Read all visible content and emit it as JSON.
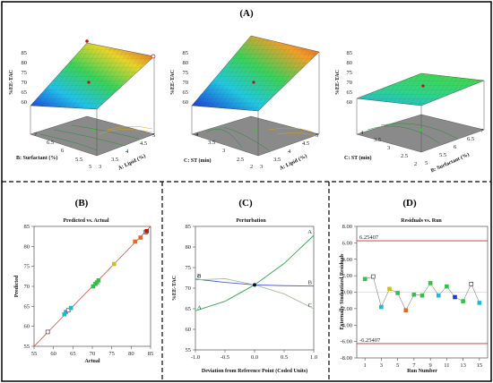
{
  "figure": {
    "panel_A_label": "(A)",
    "panel_B_label": "(B)",
    "panel_C_label": "(C)",
    "panel_D_label": "(D)"
  },
  "chart_data": [
    {
      "type": "surface3d",
      "panel": "A-1",
      "zlabel": "%EE-TAC",
      "xlabel": "A: Lipid (%)",
      "ylabel": "B: Surfactant (%)",
      "z_ticks": [
        "60",
        "65",
        "70",
        "75",
        "80",
        "85"
      ],
      "x_ticks": [
        "3",
        "3.5",
        "4",
        "4.5",
        "5"
      ],
      "y_ticks": [
        "5",
        "5.5",
        "6",
        "6.5",
        "7"
      ],
      "z_range": [
        60,
        85
      ]
    },
    {
      "type": "surface3d",
      "panel": "A-2",
      "zlabel": "%EE-TAC",
      "xlabel": "A: Lipid (%)",
      "ylabel": "C: ST (min)",
      "z_ticks": [
        "60",
        "65",
        "70",
        "75",
        "80",
        "85"
      ],
      "x_ticks": [
        "3",
        "3.5",
        "4",
        "4.5",
        "5"
      ],
      "y_ticks": [
        "2",
        "2.5",
        "3",
        "3.5",
        "4"
      ],
      "z_range": [
        60,
        85
      ]
    },
    {
      "type": "surface3d",
      "panel": "A-3",
      "zlabel": "%EE-TAC",
      "xlabel": "B: Surfactant (%)",
      "ylabel": "C: ST (min)",
      "z_ticks": [
        "60",
        "65",
        "70",
        "75",
        "80",
        "85"
      ],
      "x_ticks": [
        "5",
        "5.5",
        "6",
        "6.5",
        "7"
      ],
      "y_ticks": [
        "2",
        "2.5",
        "3",
        "3.5",
        "4"
      ],
      "z_range": [
        60,
        85
      ]
    },
    {
      "type": "scatter",
      "panel": "B",
      "title": "Predicted vs. Actual",
      "xlabel": "Actual",
      "ylabel": "Predicted",
      "xlim": [
        55,
        85
      ],
      "ylim": [
        55,
        85
      ],
      "x_ticks": [
        55,
        60,
        65,
        70,
        75,
        80,
        85
      ],
      "y_ticks": [
        55,
        60,
        65,
        70,
        75,
        80,
        85
      ],
      "x": [
        58.5,
        62.8,
        63.2,
        63.8,
        64.5,
        70.2,
        70.8,
        71.2,
        71.6,
        75.6,
        81.0,
        82.4,
        83.8,
        84.0
      ],
      "y": [
        58.6,
        63.0,
        63.6,
        64.0,
        64.6,
        70.0,
        70.6,
        71.0,
        71.5,
        75.6,
        81.2,
        82.2,
        83.6,
        83.8
      ],
      "colors": [
        "#1a38d6",
        "#22b7d9",
        "#22b7d9",
        "#1a38d6",
        "#22b7d9",
        "#33c04a",
        "#33c04a",
        "#33c04a",
        "#33c04a",
        "#c8c021",
        "#e06b2a",
        "#e06b2a",
        "#b31c10",
        "#b31c10"
      ],
      "open_squares": [
        0,
        3,
        12
      ]
    },
    {
      "type": "line",
      "panel": "C",
      "title": "Perturbation",
      "xlabel": "Deviation from Reference Point (Coded Units)",
      "ylabel": "%EE-TAC",
      "xlim": [
        -1,
        1
      ],
      "ylim": [
        55,
        85
      ],
      "x_ticks": [
        "-1.0",
        "-0.5",
        "0.0",
        "0.5",
        "1.0"
      ],
      "y_ticks": [
        55,
        60,
        65,
        70,
        75,
        80,
        85
      ],
      "x": [
        -1,
        -0.5,
        0,
        0.5,
        1
      ],
      "series": [
        {
          "name": "A",
          "color": "#33a84a",
          "values": [
            64.5,
            66.8,
            70.8,
            76.0,
            82.8
          ]
        },
        {
          "name": "B",
          "color": "#4a5ad8",
          "values": [
            72.2,
            71.4,
            70.8,
            70.6,
            70.5
          ]
        },
        {
          "name": "C",
          "color": "#9bbf9b",
          "values": [
            72.0,
            72.3,
            70.8,
            68.6,
            65.0
          ]
        }
      ],
      "reference_point": [
        0,
        70.8
      ]
    },
    {
      "type": "scatter",
      "panel": "D",
      "title": "Residuals vs. Run",
      "xlabel": "Run Number",
      "ylabel": "Externally Studentized Residuals",
      "xlim": [
        0,
        16
      ],
      "ylim": [
        -8,
        8
      ],
      "x_ticks": [
        1,
        3,
        5,
        7,
        9,
        11,
        13,
        15
      ],
      "y_ticks": [
        "-8.00",
        "-6.00",
        "-4.00",
        "-2.00",
        "0.00",
        "2.00",
        "4.00",
        "6.00",
        "8.00"
      ],
      "limit_labels": [
        "6.25407",
        "-6.25407"
      ],
      "limits": [
        6.25407,
        -6.25407
      ],
      "x": [
        1,
        2,
        3,
        4,
        5,
        6,
        7,
        8,
        9,
        10,
        11,
        12,
        13,
        14,
        15
      ],
      "y": [
        1.6,
        1.9,
        -1.8,
        0.4,
        -0.1,
        -2.2,
        -0.3,
        -0.4,
        1.1,
        -0.4,
        0.7,
        -0.6,
        -1.1,
        1.0,
        -1.3
      ],
      "colors": [
        "#33c04a",
        "#1a38d6",
        "#22b7d9",
        "#c8c021",
        "#33c04a",
        "#e06b2a",
        "#33c04a",
        "#33c04a",
        "#33c04a",
        "#22b7d9",
        "#33c04a",
        "#1a38d6",
        "#33c04a",
        "#b31c10",
        "#22b7d9"
      ],
      "open_squares": [
        1,
        13
      ]
    }
  ]
}
